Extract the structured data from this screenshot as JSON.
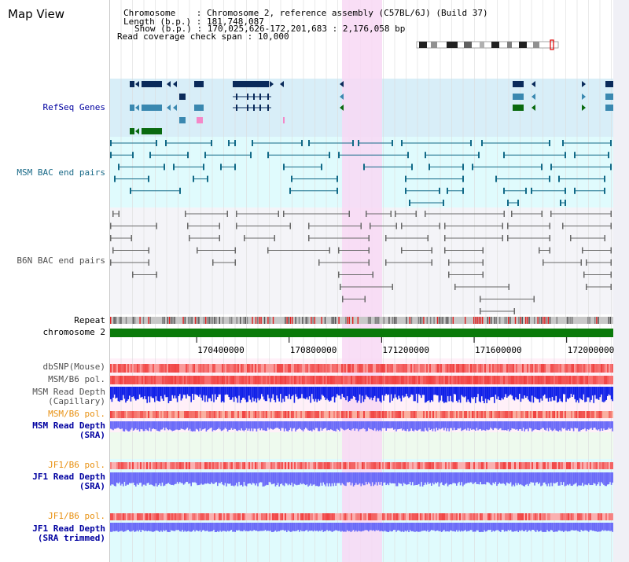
{
  "view_title": "Map View",
  "info": {
    "chromosome_label": "Chromosome",
    "chromosome_value": "Chromosome 2, reference assembly (C57BL/6J) (Build 37)",
    "length_label": "Length (b.p.)",
    "length_value": "181,748,087",
    "show_label": "Show (b.p.)",
    "show_value": "170,025,626-172,201,683 : 2,176,058 bp",
    "read_cov_label": "Read coverage check span",
    "read_cov_value": "10,000"
  },
  "tracks": {
    "refseq": "RefSeq Genes",
    "msm_bac": "MSM BAC end pairs",
    "b6n_bac": "B6N BAC end pairs",
    "repeat": "Repeat",
    "chromosome": "chromosome 2",
    "dbsnp": "dbSNP(Mouse)",
    "msm_b6_pol": "MSM/B6 pol.",
    "msm_read_depth_cap_1": "MSM Read Depth",
    "msm_read_depth_cap_2": "(Capillary)",
    "msm_b6_pol_2": "MSM/B6 pol.",
    "msm_read_depth_sra_1": "MSM Read Depth",
    "msm_read_depth_sra_2": "(SRA)",
    "jf1_b6_pol": "JF1/B6 pol.",
    "jf1_read_depth_sra_1": "JF1 Read Depth",
    "jf1_read_depth_sra_2": "(SRA)",
    "jf1_b6_pol_2": "JF1/B6 pol.",
    "jf1_read_depth_trim_1": "JF1 Read Depth",
    "jf1_read_depth_trim_2": "(SRA trimmed)"
  },
  "axis": {
    "ticks": [
      {
        "label": "170400000",
        "value": 170400000
      },
      {
        "label": "170800000",
        "value": 170800000
      },
      {
        "label": "171200000",
        "value": 171200000
      },
      {
        "label": "171600000",
        "value": 171600000
      },
      {
        "label": "172000000",
        "value": 172000000
      }
    ],
    "start": 170025626,
    "end": 172201683
  },
  "colors": {
    "refseq_bg": "#d8eef8",
    "msm_bg": "#e0fbfd",
    "b6n_bg": "#f4f4f8",
    "highlight": "#f8d8f4",
    "gene_dark": "#0a2a5a",
    "gene_mid": "#3a88b0",
    "gene_green": "#0a6a10",
    "gene_pink": "#f488c8",
    "msm_pair": "#126a88",
    "b6n_pair": "#686868",
    "chrom_green": "#0a7a0a",
    "snp_red": "#f04040",
    "depth_blue": "#1020e8",
    "depth_violet": "#6a6af8",
    "label_blue": "#0000a0",
    "label_teal": "#1a6a88",
    "label_orange": "#e89010"
  }
}
